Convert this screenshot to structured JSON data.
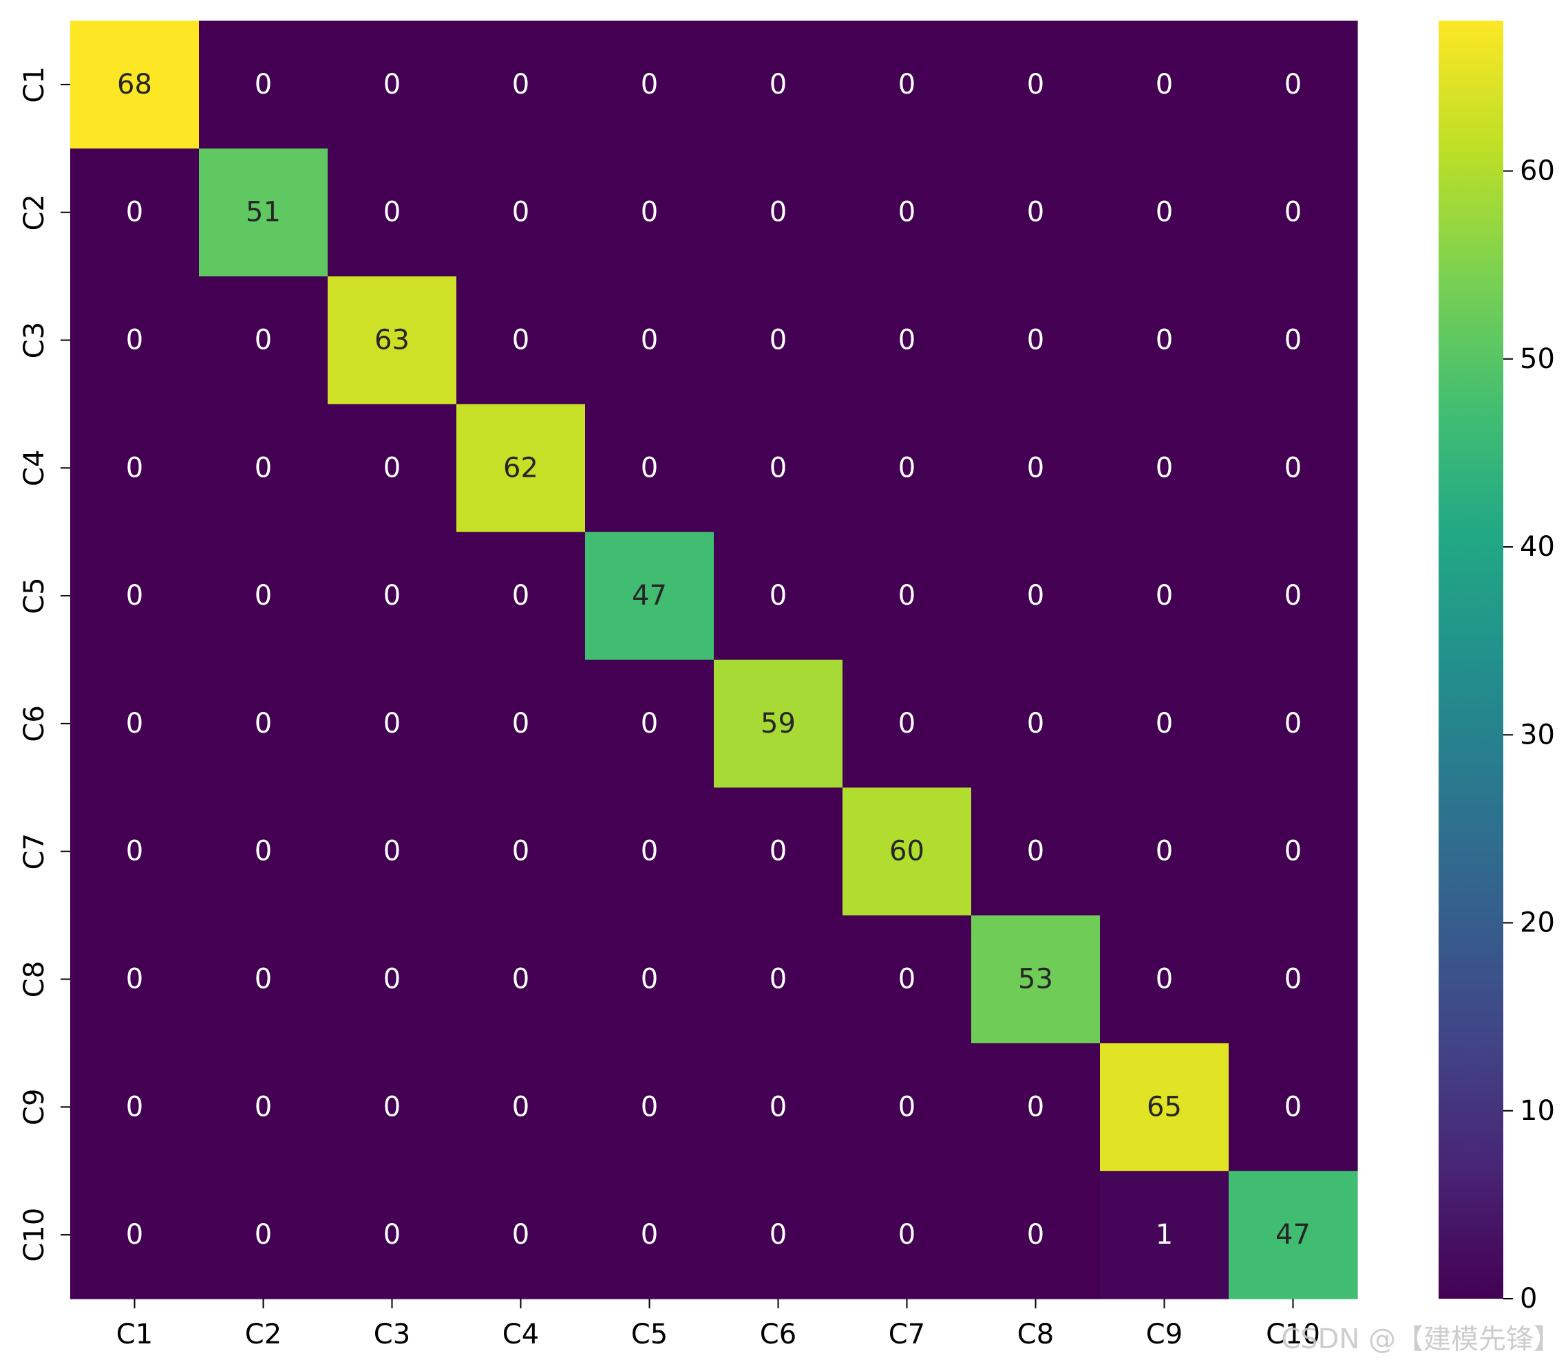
{
  "watermark": "CSDN @【建模先锋】",
  "chart_data": {
    "type": "heatmap",
    "title": "",
    "xlabel": "",
    "ylabel": "",
    "x_categories": [
      "C1",
      "C2",
      "C3",
      "C4",
      "C5",
      "C6",
      "C7",
      "C8",
      "C9",
      "C10"
    ],
    "y_categories": [
      "C1",
      "C2",
      "C3",
      "C4",
      "C5",
      "C6",
      "C7",
      "C8",
      "C9",
      "C10"
    ],
    "values": [
      [
        68,
        0,
        0,
        0,
        0,
        0,
        0,
        0,
        0,
        0
      ],
      [
        0,
        51,
        0,
        0,
        0,
        0,
        0,
        0,
        0,
        0
      ],
      [
        0,
        0,
        63,
        0,
        0,
        0,
        0,
        0,
        0,
        0
      ],
      [
        0,
        0,
        0,
        62,
        0,
        0,
        0,
        0,
        0,
        0
      ],
      [
        0,
        0,
        0,
        0,
        47,
        0,
        0,
        0,
        0,
        0
      ],
      [
        0,
        0,
        0,
        0,
        0,
        59,
        0,
        0,
        0,
        0
      ],
      [
        0,
        0,
        0,
        0,
        0,
        0,
        60,
        0,
        0,
        0
      ],
      [
        0,
        0,
        0,
        0,
        0,
        0,
        0,
        53,
        0,
        0
      ],
      [
        0,
        0,
        0,
        0,
        0,
        0,
        0,
        0,
        65,
        0
      ],
      [
        0,
        0,
        0,
        0,
        0,
        0,
        0,
        0,
        1,
        47
      ]
    ],
    "colormap": "viridis",
    "vmin": 0,
    "vmax": 68,
    "colorbar_ticks": [
      0,
      10,
      20,
      30,
      40,
      50,
      60
    ],
    "annotations": true,
    "grid": false
  }
}
